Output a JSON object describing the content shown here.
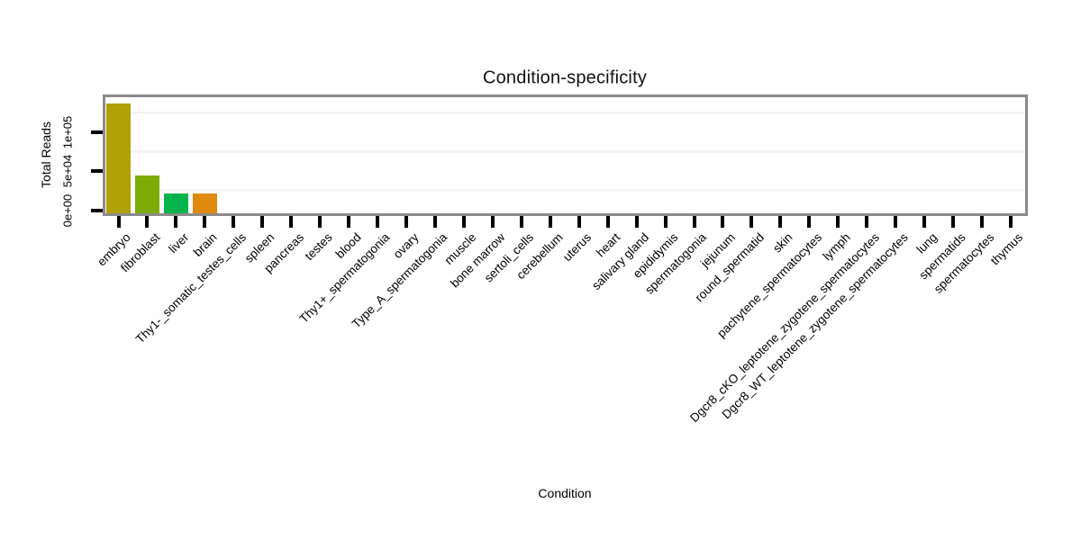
{
  "title": "Condition-specificity",
  "colors": {
    "background": "#ffffff",
    "panel_border": "#8a8a8a",
    "tick": "#000000",
    "minor_grid": "#f4f4f4",
    "embryo_bar": "#b1a106",
    "fibroblast_bar": "#7dab05",
    "liver_bar": "#04b34c",
    "brain_bar": "#e0890f"
  },
  "chart_data": {
    "type": "bar",
    "title": "Condition-specificity",
    "xlabel": "Condition",
    "ylabel": "Total Reads",
    "ylim": [
      0,
      147500
    ],
    "grid": "faint horizontal minor gridlines only",
    "legend": "none",
    "x_label_rotation_deg": 45,
    "yticks": [
      {
        "value": 0,
        "label": "0e+00"
      },
      {
        "value": 50000,
        "label": "5e+04"
      },
      {
        "value": 100000,
        "label": "1e+05"
      }
    ],
    "minor_gridline_values": [
      25000,
      75000,
      125000
    ],
    "categories": [
      "embryo",
      "fibroblast",
      "liver",
      "brain",
      "Thy1-_somatic_testes_cells",
      "spleen",
      "pancreas",
      "testes",
      "blood",
      "Thy1+_spermatogonia",
      "ovary",
      "Type_A_spermatogonia",
      "muscle",
      "bone marrow",
      "sertoli_cells",
      "cerebellum",
      "uterus",
      "heart",
      "salivary gland",
      "epididymis",
      "spermatogonia",
      "jejunum",
      "round_spermatid",
      "skin",
      "pachytene_spermatocytes",
      "lymph",
      "Dgcr8_cKO_leptotene_zygotene_spermatocytes",
      "Dgcr8_WT_leptotene_zygotene_spermatocytes",
      "lung",
      "spermatids",
      "spermatocytes",
      "thymus"
    ],
    "values": [
      139000,
      48000,
      25500,
      24800,
      0,
      0,
      0,
      0,
      0,
      0,
      0,
      0,
      0,
      0,
      0,
      0,
      0,
      0,
      0,
      0,
      0,
      0,
      0,
      0,
      0,
      0,
      0,
      0,
      0,
      0,
      0,
      0
    ],
    "bar_colors": [
      "#b1a106",
      "#7dab05",
      "#04b34c",
      "#e0890f",
      null,
      null,
      null,
      null,
      null,
      null,
      null,
      null,
      null,
      null,
      null,
      null,
      null,
      null,
      null,
      null,
      null,
      null,
      null,
      null,
      null,
      null,
      null,
      null,
      null,
      null,
      null,
      null
    ]
  }
}
